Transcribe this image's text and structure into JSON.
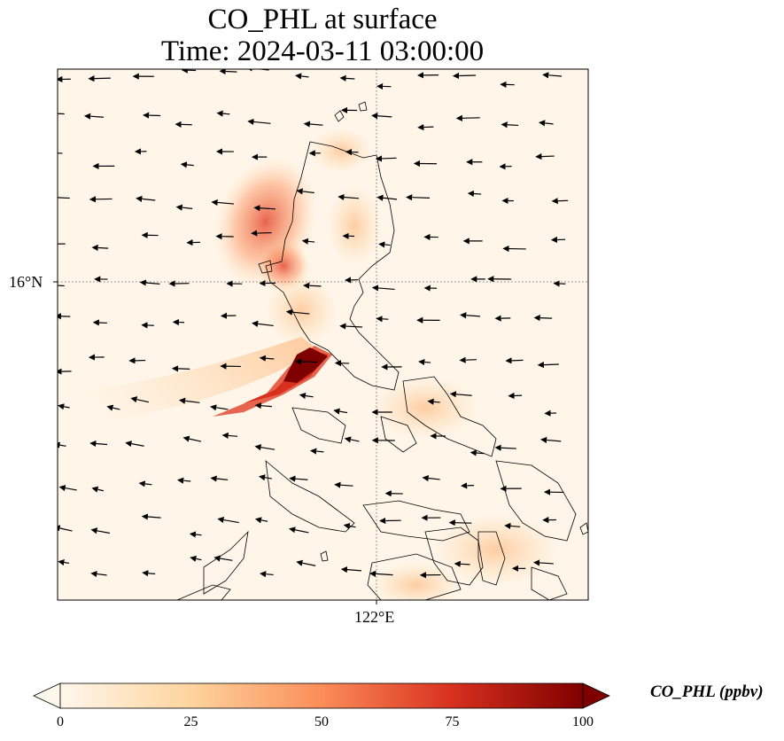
{
  "title": {
    "line1": "CO_PHL at surface",
    "line2": "Time: 2024-03-11 03:00:00"
  },
  "map": {
    "lat_tick": "16°N",
    "lon_tick": "122°E",
    "gridline_style": "dotted",
    "field": "CO_PHL",
    "wind_vectors": true,
    "coastlines": true
  },
  "colorbar": {
    "label": "CO_PHL (ppbv)",
    "ticks": [
      "0",
      "25",
      "50",
      "75",
      "100"
    ],
    "min": 0,
    "max": 100,
    "extend": "both",
    "colormap": "OrRd",
    "colors": [
      "#fff7ec",
      "#fdd49e",
      "#fc8d59",
      "#d7301f",
      "#7f0000"
    ]
  }
}
